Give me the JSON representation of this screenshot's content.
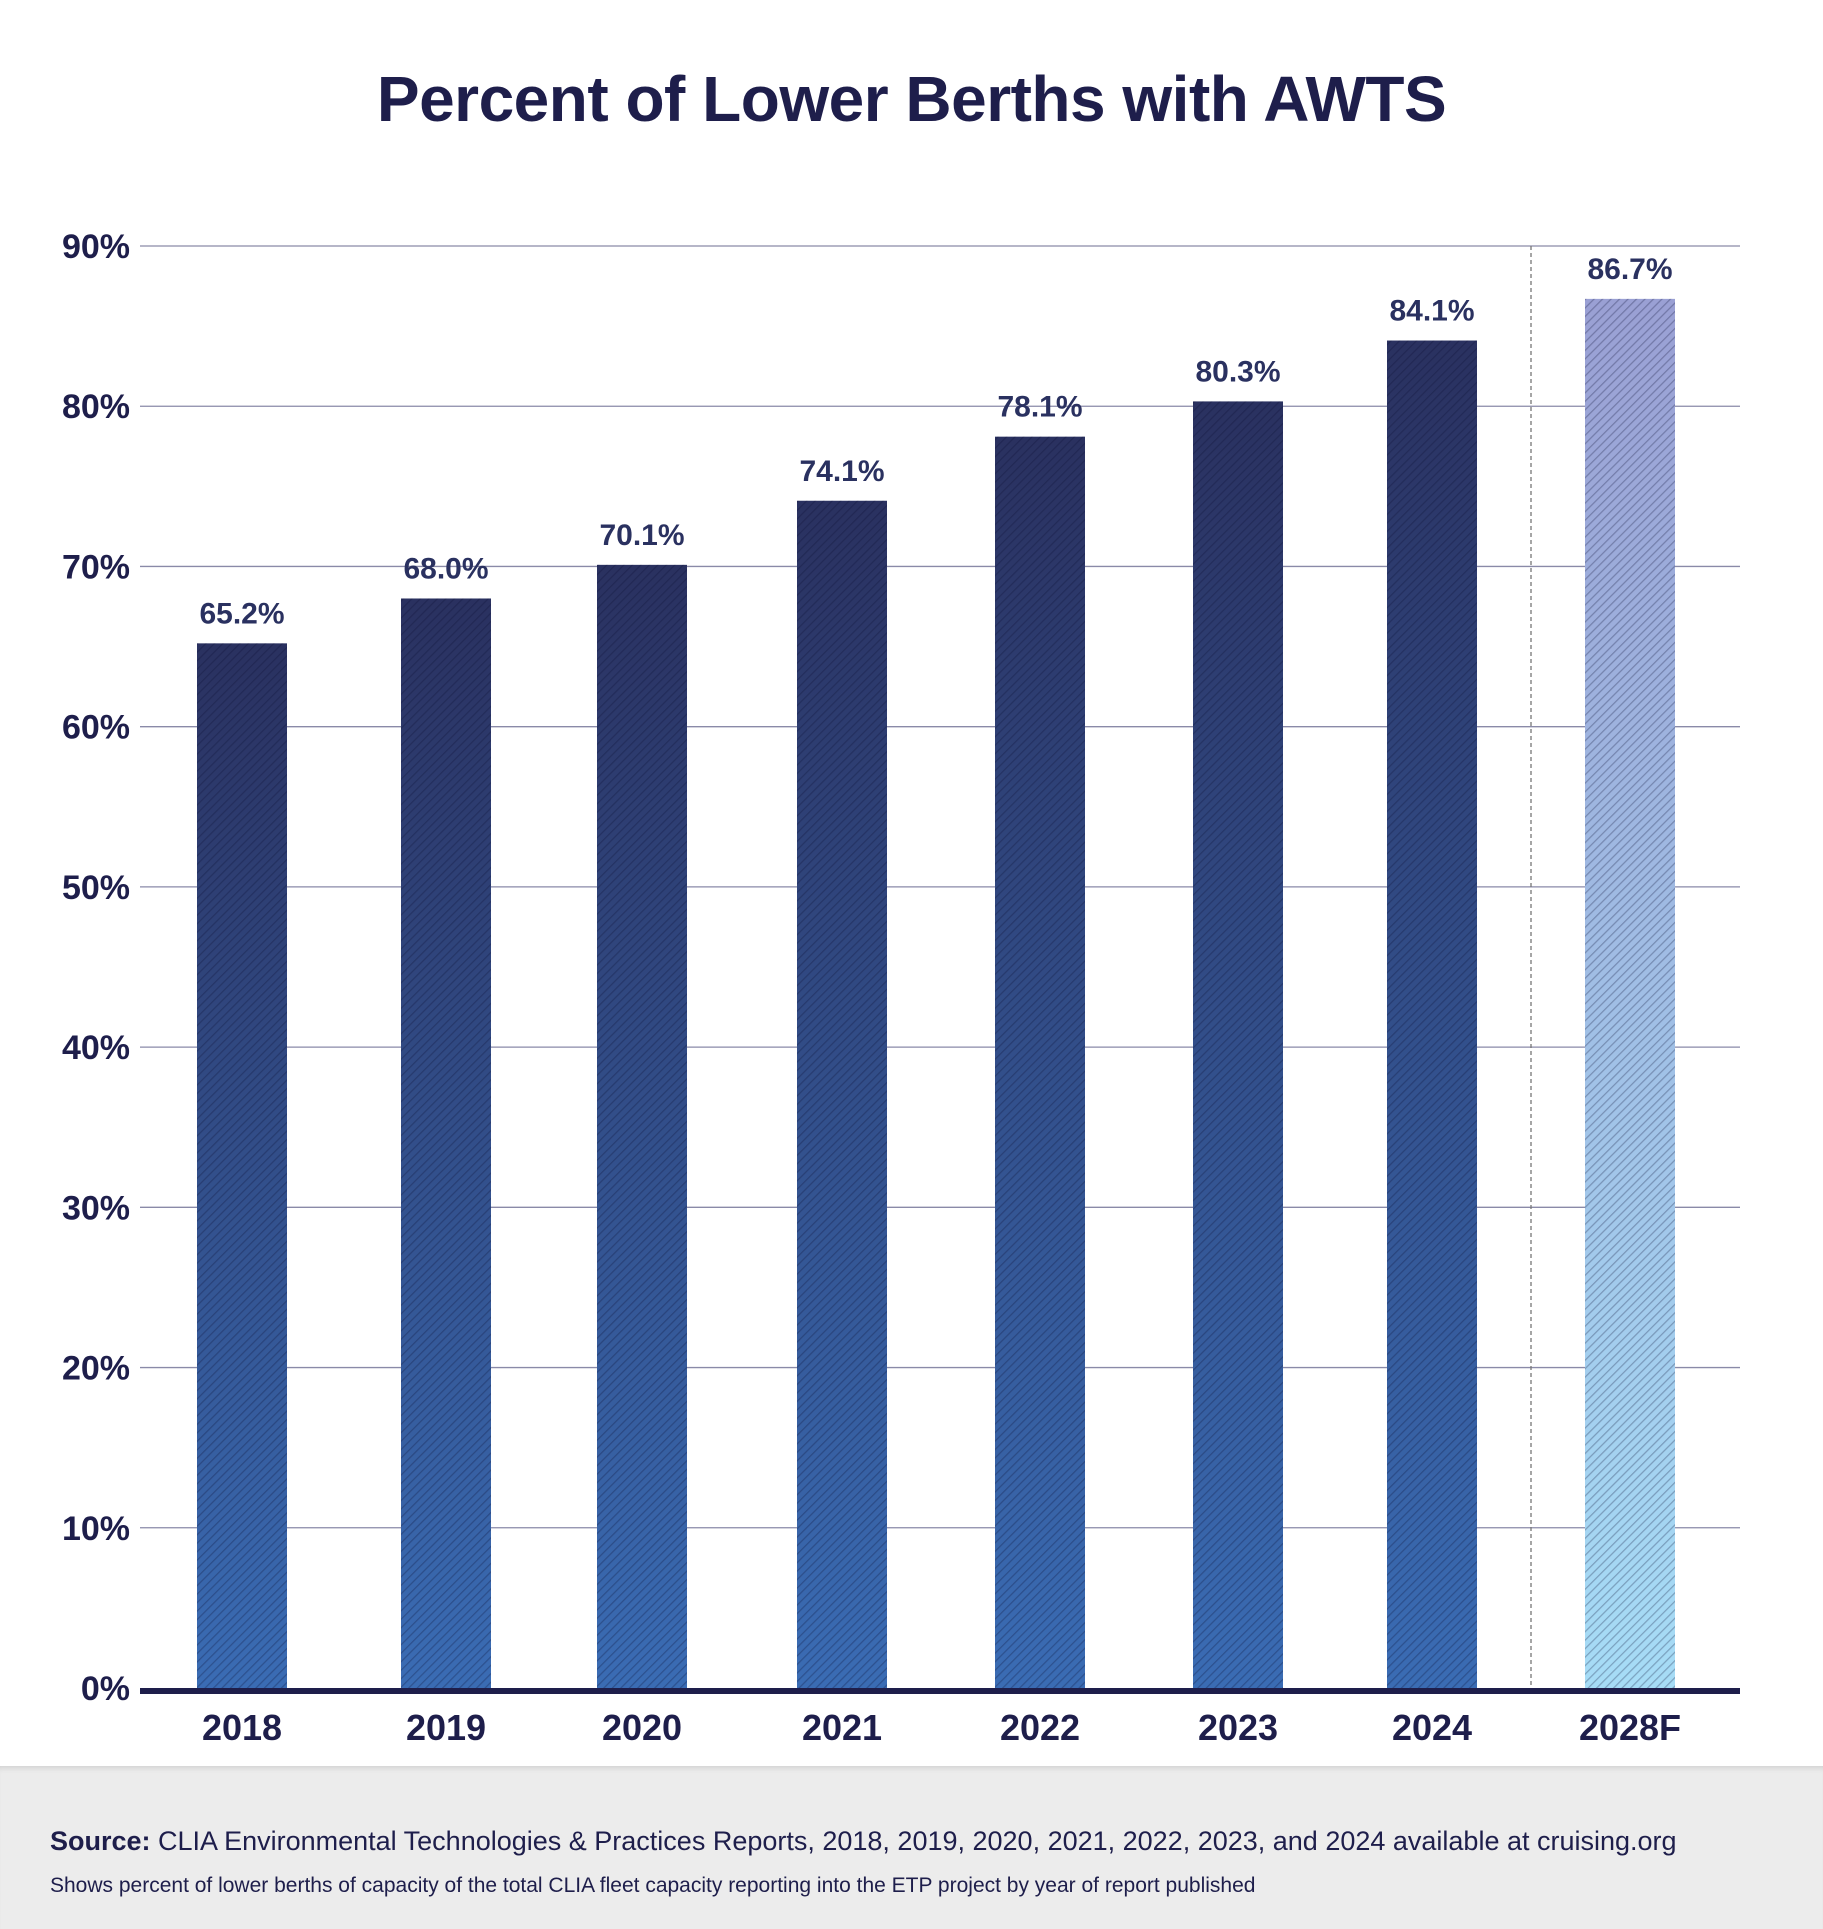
{
  "title": "Percent of Lower Berths with AWTS",
  "chart_data": {
    "type": "bar",
    "title": "Percent of Lower Berths with AWTS",
    "xlabel": "",
    "ylabel": "",
    "categories": [
      "2018",
      "2019",
      "2020",
      "2021",
      "2022",
      "2023",
      "2024",
      "2028F"
    ],
    "values": [
      65.2,
      68.0,
      70.1,
      74.1,
      78.1,
      80.3,
      84.1,
      86.7
    ],
    "data_labels": [
      "65.2%",
      "68.0%",
      "70.1%",
      "74.1%",
      "78.1%",
      "80.3%",
      "84.1%",
      "86.7%"
    ],
    "forecast": [
      false,
      false,
      false,
      false,
      false,
      false,
      false,
      true
    ],
    "ylim": [
      0,
      90
    ],
    "yticks": [
      0,
      10,
      20,
      30,
      40,
      50,
      60,
      70,
      80,
      90
    ],
    "ytick_labels": [
      "0%",
      "10%",
      "20%",
      "30%",
      "40%",
      "50%",
      "60%",
      "70%",
      "80%",
      "90%"
    ],
    "grid": true,
    "legend": "none",
    "annotations": [
      "dashed separator between 2024 and 2028F (forecast)"
    ],
    "colors": {
      "actual_top": "#2a3160",
      "actual_bottom": "#3a6cb4",
      "forecast_top": "#9aa0d4",
      "forecast_bottom": "#a6dcf6",
      "text": "#1e1e4b",
      "grid": "#8a8aa8",
      "axis": "#1e1e4b"
    }
  },
  "footer": {
    "source_label": "Source:",
    "source_text": " CLIA Environmental Technologies & Practices Reports, 2018, 2019, 2020, 2021, 2022, 2023, and 2024 available at cruising.org",
    "note": "Shows percent of lower berths of capacity of the total CLIA fleet capacity reporting into the ETP project by year of report published"
  }
}
